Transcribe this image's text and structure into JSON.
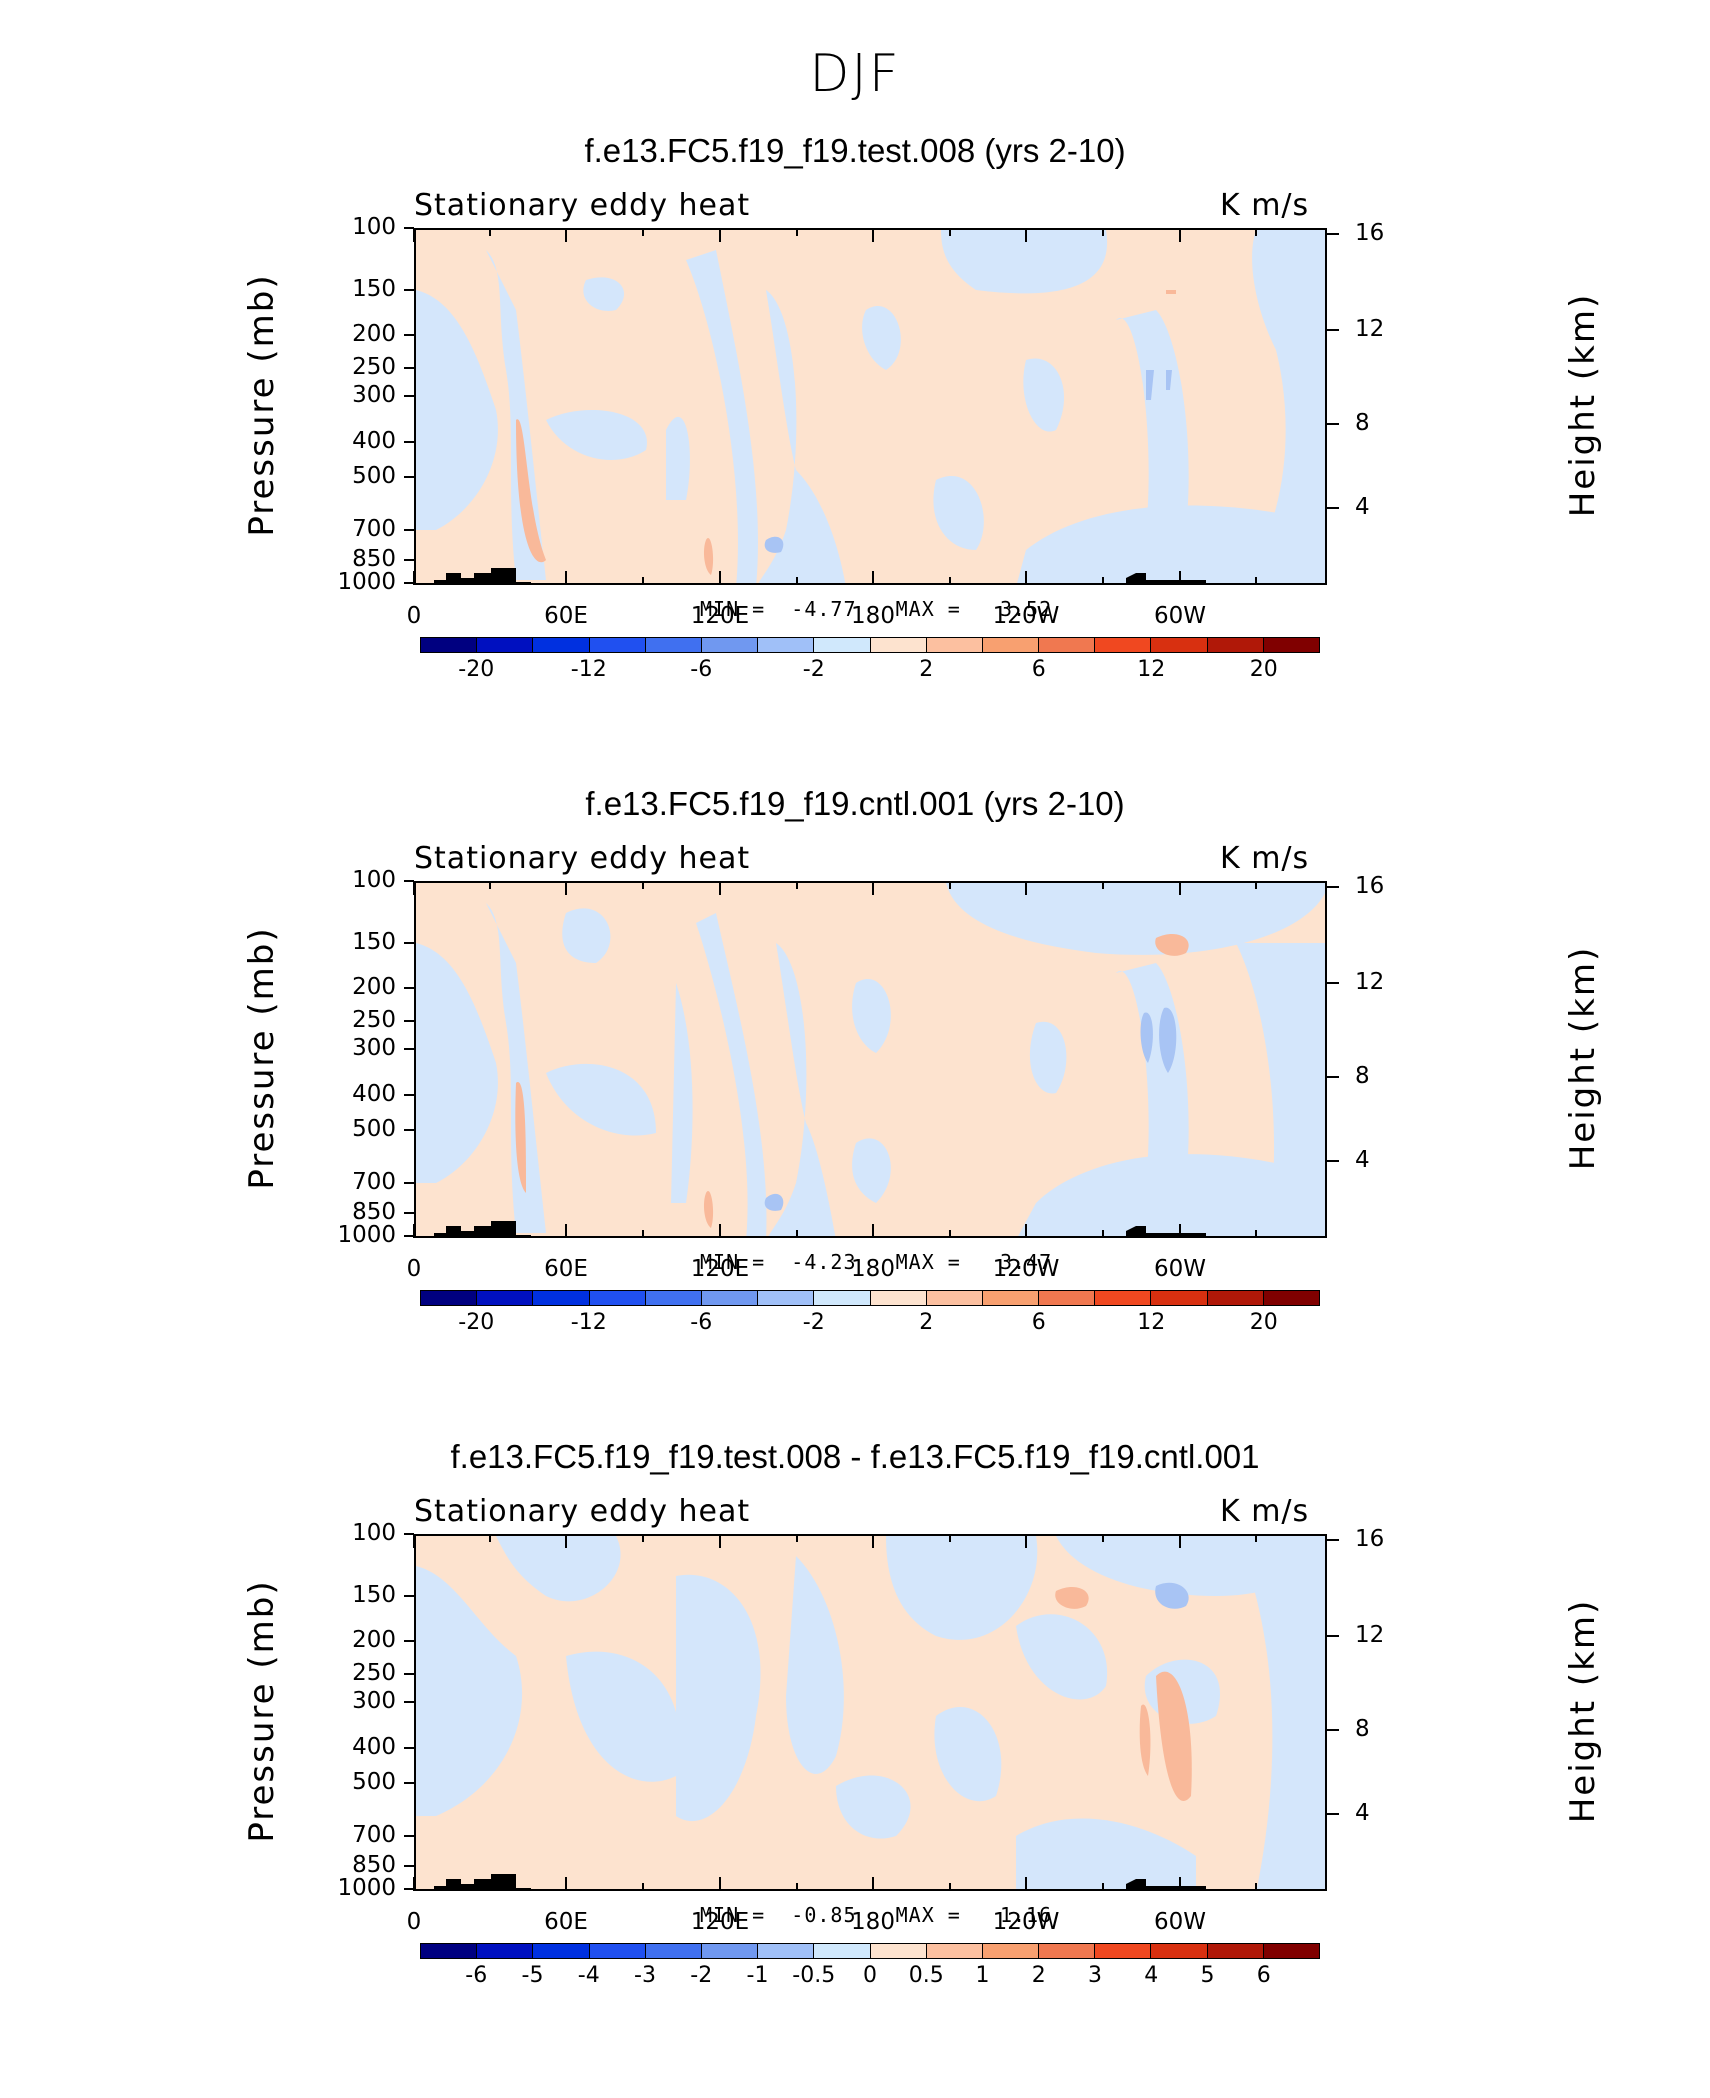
{
  "season": "DJF",
  "chart_data": [
    {
      "type": "heatmap",
      "title": "f.e13.FC5.f19_f19.test.008 (yrs 2-10)",
      "variable": "Stationary eddy heat",
      "units": "K m/s",
      "ylabel": "Pressure (mb)",
      "ylabel_right": "Height (km)",
      "yticks": [
        "100",
        "150",
        "200",
        "250",
        "300",
        "400",
        "500",
        "700",
        "850",
        "1000"
      ],
      "yticks_right": [
        "16",
        "12",
        "8",
        "4"
      ],
      "xticks": [
        "0",
        "60E",
        "120E",
        "180",
        "120W",
        "60W"
      ],
      "min_label": "MIN =",
      "min": "-4.77",
      "max_label": "MAX =",
      "max": "3.52",
      "colorbar_labels": [
        "-20",
        "-12",
        "-6",
        "-2",
        "2",
        "6",
        "12",
        "20"
      ]
    },
    {
      "type": "heatmap",
      "title": "f.e13.FC5.f19_f19.cntl.001 (yrs 2-10)",
      "variable": "Stationary eddy heat",
      "units": "K m/s",
      "ylabel": "Pressure (mb)",
      "ylabel_right": "Height (km)",
      "yticks": [
        "100",
        "150",
        "200",
        "250",
        "300",
        "400",
        "500",
        "700",
        "850",
        "1000"
      ],
      "yticks_right": [
        "16",
        "12",
        "8",
        "4"
      ],
      "xticks": [
        "0",
        "60E",
        "120E",
        "180",
        "120W",
        "60W"
      ],
      "min_label": "MIN =",
      "min": "-4.23",
      "max_label": "MAX =",
      "max": "3.47",
      "colorbar_labels": [
        "-20",
        "-12",
        "-6",
        "-2",
        "2",
        "6",
        "12",
        "20"
      ]
    },
    {
      "type": "heatmap",
      "title": "f.e13.FC5.f19_f19.test.008 - f.e13.FC5.f19_f19.cntl.001",
      "variable": "Stationary eddy heat",
      "units": "K m/s",
      "ylabel": "Pressure (mb)",
      "ylabel_right": "Height (km)",
      "yticks": [
        "100",
        "150",
        "200",
        "250",
        "300",
        "400",
        "500",
        "700",
        "850",
        "1000"
      ],
      "yticks_right": [
        "16",
        "12",
        "8",
        "4"
      ],
      "xticks": [
        "0",
        "60E",
        "120E",
        "180",
        "120W",
        "60W"
      ],
      "min_label": "MIN =",
      "min": "-0.85",
      "max_label": "MAX =",
      "max": "1.16",
      "colorbar_labels": [
        "-6",
        "-5",
        "-4",
        "-3",
        "-2",
        "-1",
        "-0.5",
        "0",
        "0.5",
        "1",
        "2",
        "3",
        "4",
        "5",
        "6"
      ]
    }
  ],
  "colors": {
    "colorbar_16": [
      "#000080",
      "#0010c0",
      "#0030e0",
      "#2050f0",
      "#4070f0",
      "#7098f0",
      "#a0c0f8",
      "#d0e8fc",
      "#fde3cf",
      "#fcc0a0",
      "#f8a070",
      "#f07850",
      "#f04820",
      "#d83010",
      "#b01808",
      "#800000"
    ],
    "colorbar_diff": [
      "#000080",
      "#0010c0",
      "#0030e0",
      "#2050f0",
      "#4070f0",
      "#7098f0",
      "#a0c0f8",
      "#d0e8fc",
      "#fde3cf",
      "#fcc0a0",
      "#f8a070",
      "#f07850",
      "#f04820",
      "#d83010",
      "#b01808",
      "#800000"
    ],
    "neg_light": "#d4e6fb",
    "pos_light": "#fde3cf",
    "neg_mid": "#a8c4f4",
    "pos_mid": "#f9b99a"
  }
}
